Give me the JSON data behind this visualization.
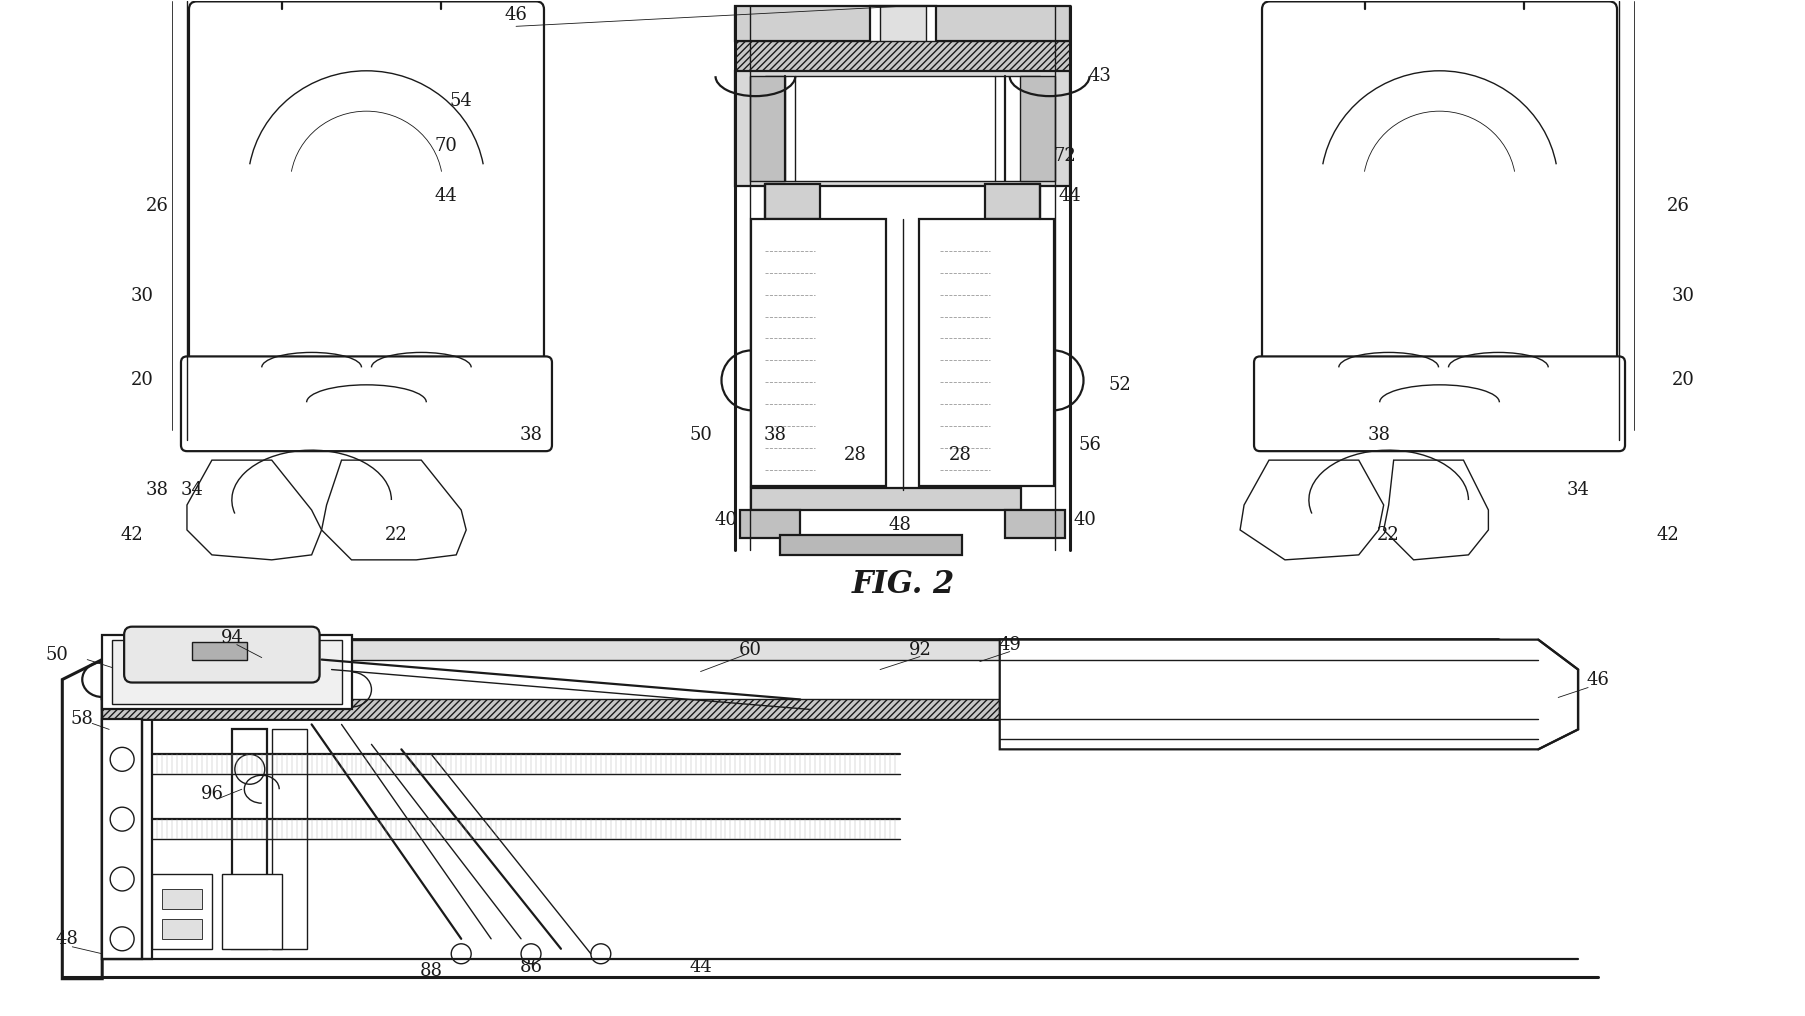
{
  "background_color": "#ffffff",
  "line_color": "#1a1a1a",
  "fig_width": 18.06,
  "fig_height": 10.16,
  "fig2_label": "FIG. 2",
  "fig2_label_fontsize": 20
}
